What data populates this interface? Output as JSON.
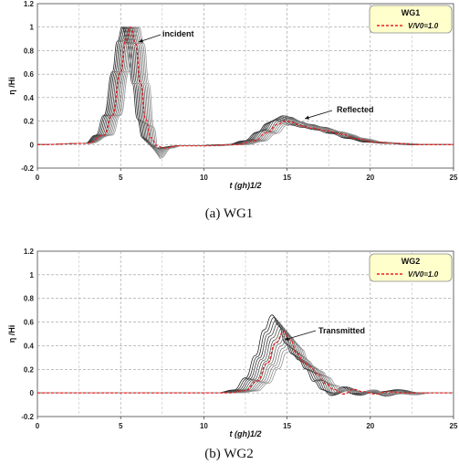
{
  "chart_data": [
    {
      "type": "line",
      "caption": "(a)  WG1",
      "xlabel": "t (gh)1/2",
      "ylabel": "η /Hi",
      "xlim": [
        0,
        25
      ],
      "ylim": [
        -0.2,
        1.2
      ],
      "xticks": [
        "0",
        "5",
        "10",
        "15",
        "20",
        "25"
      ],
      "yticks": [
        "-0.2",
        "0",
        "0.2",
        "0.4",
        "0.6",
        "0.8",
        "1",
        "1.2"
      ],
      "grid": true,
      "legend_title": "WG1",
      "legend_entry": "V/V0=1.0",
      "legend_placement": "top-right",
      "annotations": [
        "incident",
        "Reflected"
      ],
      "highlight_color": "#e8211f",
      "family_color": "#222222",
      "family_count": 12,
      "series": [
        {
          "name": "V/V0=1.0",
          "x": [
            0,
            3.0,
            4.0,
            4.5,
            5.0,
            5.3,
            5.6,
            5.9,
            6.2,
            6.5,
            6.8,
            7.2,
            7.6,
            8.5,
            10,
            12,
            13,
            13.8,
            14.4,
            14.9,
            15.3,
            15.8,
            16.5,
            17.3,
            18.2,
            19.2,
            20.3,
            21.5,
            23,
            25
          ],
          "y": [
            0,
            0.01,
            0.08,
            0.25,
            0.62,
            0.88,
            1.0,
            0.86,
            0.52,
            0.22,
            0.06,
            -0.01,
            -0.03,
            -0.01,
            -0.01,
            0,
            0.03,
            0.1,
            0.17,
            0.2,
            0.19,
            0.16,
            0.14,
            0.12,
            0.09,
            0.05,
            0.02,
            0.01,
            0,
            0
          ]
        }
      ]
    },
    {
      "type": "line",
      "caption": "(b)  WG2",
      "xlabel": "t (gh)1/2",
      "ylabel": "η /Hi",
      "xlim": [
        0,
        25
      ],
      "ylim": [
        -0.2,
        1.2
      ],
      "xticks": [
        "0",
        "5",
        "10",
        "15",
        "20",
        "25"
      ],
      "yticks": [
        "-0.2",
        "0",
        "0.2",
        "0.4",
        "0.6",
        "0.8",
        "1",
        "1.2"
      ],
      "grid": true,
      "legend_title": "WG2",
      "legend_entry": "V/V0=1.0",
      "legend_placement": "top-right",
      "annotations": [
        "Transmitted"
      ],
      "highlight_color": "#e8211f",
      "family_color": "#222222",
      "family_count": 12,
      "series": [
        {
          "name": "V/V0=1.0",
          "x": [
            0,
            11.5,
            12.5,
            13.2,
            13.8,
            14.3,
            14.8,
            15.2,
            15.6,
            16.0,
            16.4,
            16.8,
            17.3,
            17.8,
            18.4,
            19,
            19.6,
            20.3,
            21,
            22,
            23,
            25
          ],
          "y": [
            0,
            0,
            0.02,
            0.1,
            0.25,
            0.42,
            0.52,
            0.45,
            0.33,
            0.26,
            0.22,
            0.16,
            0.08,
            0.03,
            -0.01,
            0.03,
            0.01,
            -0.01,
            0.01,
            0,
            0,
            0
          ]
        }
      ]
    }
  ]
}
